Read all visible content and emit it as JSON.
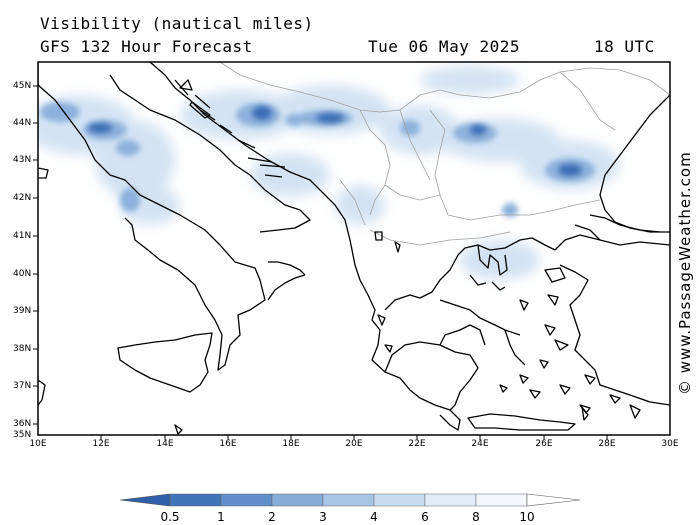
{
  "title": {
    "line1": "Visibility (nautical miles)",
    "line2": "GFS 132 Hour Forecast",
    "date": "Tue 06 May 2025",
    "time": "18 UTC"
  },
  "credit": "© www.PassageWeather.com",
  "lat_labels": [
    "45N",
    "44N",
    "43N",
    "42N",
    "41N",
    "40N",
    "39N",
    "38N",
    "37N",
    "36N",
    "35N"
  ],
  "lon_labels": [
    "10E",
    "12E",
    "14E",
    "16E",
    "18E",
    "20E",
    "22E",
    "24E",
    "26E",
    "28E",
    "30E"
  ],
  "colorbar": {
    "labels": [
      "0.5",
      "1",
      "2",
      "3",
      "4",
      "6",
      "8",
      "10"
    ],
    "colors": [
      "#3568b0",
      "#4a7ec0",
      "#6a97cf",
      "#8db1dc",
      "#aec9e8",
      "#cde0f3",
      "#e6f0fa",
      "#ffffff"
    ]
  },
  "colors": {
    "land_outline": "#000000",
    "border": "#a0a0a0",
    "frame": "#000000"
  }
}
